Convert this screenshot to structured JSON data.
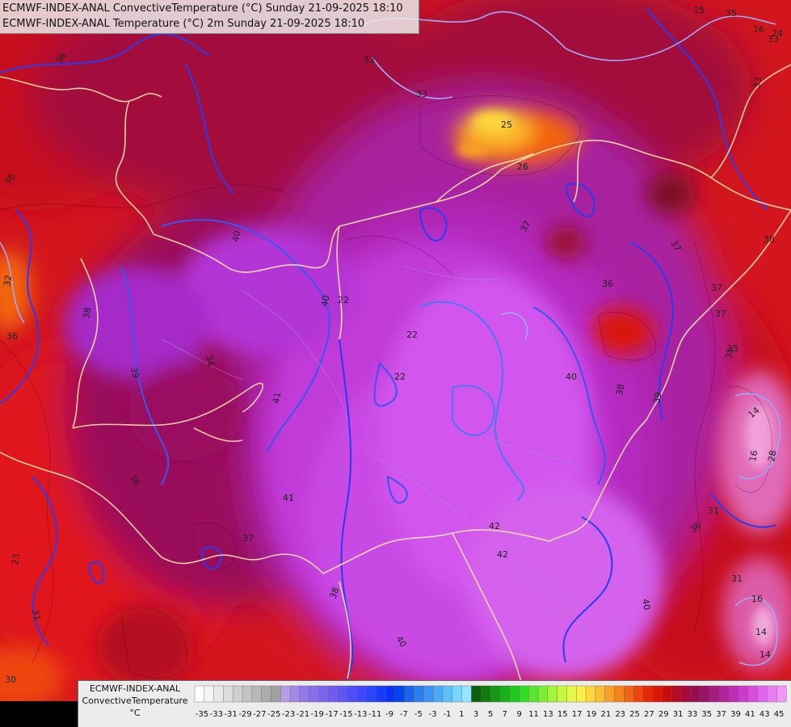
{
  "header": {
    "line1": "ECMWF-INDEX-ANAL ConvectiveTemperature (°C) Sunday 21-09-2025 18:10",
    "line2": "ECMWF-INDEX-ANAL Temperature (°C) 2m Sunday 21-09-2025 18:10"
  },
  "legend": {
    "title_line1": "ECMWF-INDEX-ANAL",
    "title_line2": "ConvectiveTemperature",
    "unit": "°C",
    "ticks": [
      "-35",
      "-33",
      "-31",
      "-29",
      "-27",
      "-25",
      "-23",
      "-21",
      "-19",
      "-17",
      "-15",
      "-13",
      "-11",
      "-9",
      "-7",
      "-5",
      "-3",
      "-1",
      "1",
      "3",
      "5",
      "7",
      "9",
      "11",
      "13",
      "15",
      "17",
      "19",
      "21",
      "23",
      "25",
      "27",
      "29",
      "31",
      "33",
      "35",
      "37",
      "39",
      "41",
      "43",
      "45"
    ],
    "colors": [
      "#ffffff",
      "#f4f4f4",
      "#e8e8e8",
      "#dcdcdc",
      "#d0d0d0",
      "#c4c4c4",
      "#b8b8b8",
      "#acacac",
      "#a0a0a0",
      "#b59ee6",
      "#a388e8",
      "#9377ec",
      "#8a6cf0",
      "#7d64f2",
      "#6f5cf4",
      "#5f55f5",
      "#4f4ef6",
      "#3f49f8",
      "#2c45f8",
      "#1a3cf8",
      "#0a32f6",
      "#0045f0",
      "#1a63f2",
      "#2a7ef4",
      "#3c95f6",
      "#4aa9f8",
      "#5ec0fa",
      "#79d4fb",
      "#98e4fc",
      "#0e5f0e",
      "#0f7a10",
      "#119a12",
      "#15b516",
      "#1acc1a",
      "#2fdf22",
      "#55e82a",
      "#7cef33",
      "#a4f43d",
      "#c7f746",
      "#e6f74c",
      "#fbef4a",
      "#fcd83c",
      "#fbbe2e",
      "#faa122",
      "#f78318",
      "#f3640f",
      "#ee450a",
      "#e52808",
      "#d81808",
      "#c40d10",
      "#b40a22",
      "#a50a3a",
      "#9a0c52",
      "#9c1268",
      "#a71a82",
      "#b4229c",
      "#c12cb6",
      "#cc3ccc",
      "#d650de",
      "#df66ea",
      "#e97ef2",
      "#f196f7"
    ]
  },
  "map": {
    "contour_labels": [
      "36",
      "33",
      "33",
      "36",
      "33",
      "38",
      "36",
      "35",
      "34",
      "40",
      "41",
      "39",
      "38",
      "37",
      "37",
      "37",
      "35",
      "36",
      "37",
      "36",
      "38",
      "40",
      "40",
      "40",
      "41",
      "42",
      "42",
      "40",
      "39",
      "36",
      "37",
      "35",
      "38",
      "33",
      "31",
      "31",
      "30",
      "28",
      "16",
      "16",
      "14",
      "14",
      "14",
      "22",
      "22",
      "22",
      "32",
      "31",
      "26",
      "25",
      "24",
      "23",
      "16",
      "15"
    ]
  }
}
